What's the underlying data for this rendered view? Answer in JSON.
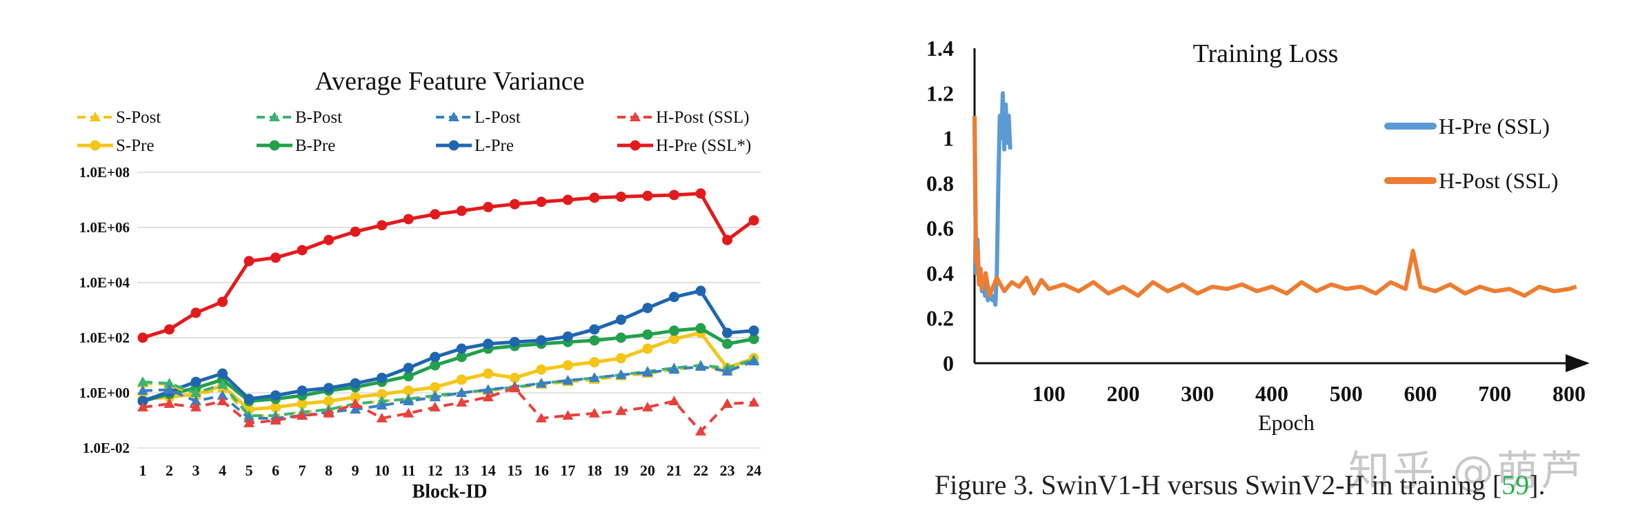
{
  "left_chart": {
    "type": "line",
    "title": "Average Feature Variance",
    "xlabel": "Block-ID",
    "yscale": "log",
    "ylim": [
      0.01,
      100000000
    ],
    "y_ticks": [
      "1.0E-02",
      "1.0E+00",
      "1.0E+02",
      "1.0E+04",
      "1.0E+06",
      "1.0E+08"
    ],
    "categories": [
      "1",
      "2",
      "3",
      "4",
      "5",
      "6",
      "7",
      "8",
      "9",
      "10",
      "11",
      "12",
      "13",
      "14",
      "15",
      "16",
      "17",
      "18",
      "19",
      "20",
      "21",
      "22",
      "23",
      "24"
    ],
    "legend_position": "top",
    "series": [
      {
        "name": "S-Post",
        "color": "#f5c518",
        "style": "dashed",
        "marker": "triangle",
        "values": [
          2.2,
          2,
          0.8,
          1.5,
          0.15,
          0.15,
          0.2,
          0.25,
          0.4,
          0.5,
          0.6,
          0.7,
          1,
          1.2,
          1.5,
          2,
          2.5,
          3,
          4,
          5,
          7,
          9,
          7,
          15
        ]
      },
      {
        "name": "B-Post",
        "color": "#3cb371",
        "style": "dashed",
        "marker": "triangle",
        "values": [
          2.5,
          2.2,
          1,
          2,
          0.15,
          0.15,
          0.2,
          0.25,
          0.4,
          0.5,
          0.6,
          0.8,
          1,
          1.3,
          1.6,
          2.2,
          2.8,
          3.5,
          4.5,
          6,
          8,
          10,
          8,
          16
        ]
      },
      {
        "name": "L-Post",
        "color": "#3a7fc1",
        "style": "dashed",
        "marker": "triangle",
        "values": [
          1.2,
          1.3,
          0.5,
          0.8,
          0.12,
          0.12,
          0.15,
          0.2,
          0.25,
          0.35,
          0.5,
          0.7,
          1,
          1.3,
          1.7,
          2.2,
          2.8,
          3.5,
          4.5,
          5.5,
          7,
          9,
          6,
          14
        ]
      },
      {
        "name": "H-Post (SSL)",
        "color": "#e8413c",
        "style": "dashed",
        "marker": "triangle",
        "values": [
          0.3,
          0.4,
          0.3,
          0.5,
          0.08,
          0.1,
          0.15,
          0.18,
          0.4,
          0.12,
          0.18,
          0.3,
          0.45,
          0.7,
          1.5,
          0.12,
          0.15,
          0.18,
          0.22,
          0.3,
          0.5,
          0.04,
          0.4,
          0.45
        ]
      },
      {
        "name": "S-Pre",
        "color": "#f5c518",
        "style": "solid",
        "marker": "circle",
        "values": [
          0.6,
          0.7,
          0.9,
          1.8,
          0.25,
          0.3,
          0.4,
          0.5,
          0.7,
          0.9,
          1.2,
          1.6,
          3,
          5,
          3.5,
          7,
          10,
          13,
          18,
          40,
          90,
          150,
          8,
          18
        ]
      },
      {
        "name": "B-Pre",
        "color": "#22a04b",
        "style": "solid",
        "marker": "circle",
        "values": [
          0.5,
          0.9,
          1.5,
          3,
          0.5,
          0.6,
          0.8,
          1.2,
          1.6,
          2.5,
          4,
          10,
          20,
          40,
          50,
          60,
          70,
          80,
          100,
          130,
          180,
          220,
          60,
          90
        ]
      },
      {
        "name": "L-Pre",
        "color": "#1f66b0",
        "style": "solid",
        "marker": "circle",
        "values": [
          0.5,
          1.1,
          2.5,
          5,
          0.6,
          0.8,
          1.2,
          1.5,
          2.2,
          3.5,
          8,
          20,
          40,
          60,
          70,
          80,
          110,
          200,
          450,
          1200,
          3000,
          5000,
          150,
          180
        ]
      },
      {
        "name": "H-Pre (SSL*)",
        "color": "#e31a1c",
        "style": "solid",
        "marker": "circle",
        "values": [
          100,
          200,
          800,
          2000,
          60000,
          80000,
          150000,
          350000,
          700000,
          1200000,
          2000000,
          3000000,
          4000000,
          5500000,
          7000000,
          8500000,
          10000000,
          12000000,
          13000000,
          14000000,
          15000000,
          17000000,
          350000,
          1800000
        ]
      }
    ]
  },
  "right_chart": {
    "type": "line",
    "title": "Training Loss",
    "xlabel": "Epoch",
    "ylim": [
      0,
      1.4
    ],
    "xlim": [
      0,
      800
    ],
    "y_ticks": [
      "0",
      "0.2",
      "0.4",
      "0.6",
      "0.8",
      "1",
      "1.2",
      "1.4"
    ],
    "x_ticks": [
      "100",
      "200",
      "300",
      "400",
      "500",
      "600",
      "700",
      "800"
    ],
    "legend_position": "right",
    "series": [
      {
        "name": "H-Pre (SSL)",
        "color": "#5b9bd5",
        "x": [
          0,
          2,
          4,
          6,
          8,
          10,
          12,
          14,
          16,
          18,
          20,
          22,
          24,
          26,
          28,
          30,
          32,
          34,
          36,
          38,
          40,
          42,
          44,
          46,
          48
        ],
        "y": [
          1.1,
          0.4,
          0.55,
          0.35,
          0.38,
          0.32,
          0.36,
          0.3,
          0.34,
          0.28,
          0.33,
          0.3,
          0.28,
          0.3,
          0.26,
          0.4,
          0.8,
          1.1,
          1.0,
          1.2,
          0.95,
          1.15,
          0.98,
          1.1,
          0.95
        ]
      },
      {
        "name": "H-Post (SSL)",
        "color": "#ed7d31",
        "x": [
          0,
          2,
          4,
          6,
          8,
          10,
          15,
          20,
          30,
          40,
          50,
          60,
          70,
          80,
          90,
          100,
          120,
          140,
          160,
          180,
          200,
          220,
          240,
          260,
          280,
          300,
          320,
          340,
          360,
          380,
          400,
          420,
          440,
          460,
          480,
          500,
          520,
          540,
          560,
          580,
          590,
          600,
          620,
          640,
          660,
          680,
          700,
          720,
          740,
          760,
          780,
          800,
          810
        ],
        "y": [
          1.1,
          0.45,
          0.5,
          0.35,
          0.42,
          0.33,
          0.4,
          0.3,
          0.38,
          0.32,
          0.36,
          0.34,
          0.38,
          0.31,
          0.37,
          0.33,
          0.35,
          0.32,
          0.36,
          0.31,
          0.34,
          0.3,
          0.36,
          0.32,
          0.35,
          0.31,
          0.34,
          0.33,
          0.35,
          0.32,
          0.34,
          0.31,
          0.36,
          0.32,
          0.35,
          0.33,
          0.34,
          0.31,
          0.36,
          0.33,
          0.5,
          0.34,
          0.32,
          0.35,
          0.31,
          0.34,
          0.32,
          0.33,
          0.3,
          0.34,
          0.32,
          0.33,
          0.34
        ]
      }
    ]
  },
  "caption": {
    "text_before": "Figure 3. SwinV1-H versus SwinV2-H in training [",
    "ref": "59",
    "text_after": "]."
  },
  "watermark": "知乎 @萌芦"
}
